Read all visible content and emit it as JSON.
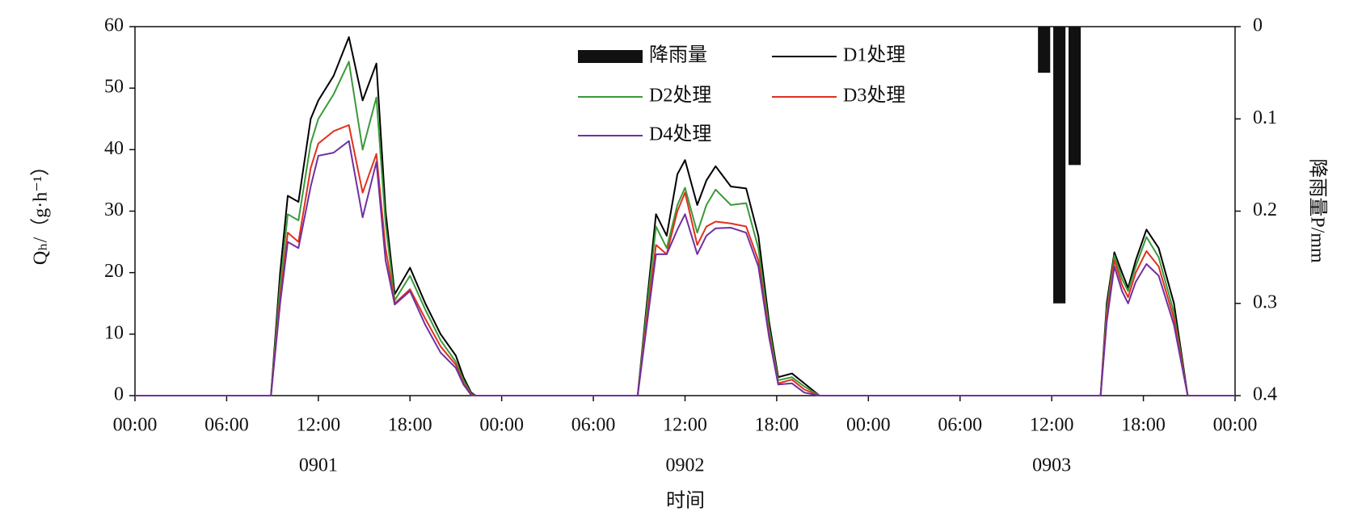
{
  "chart_data": {
    "type": "line",
    "x_label": "时间",
    "y_label": "Qₕ/（g·h⁻¹）",
    "y2_label": "降雨量P/mm",
    "xlim": [
      0,
      72
    ],
    "xticks": [
      {
        "value": 0,
        "label": "00:00"
      },
      {
        "value": 6,
        "label": "06:00"
      },
      {
        "value": 12,
        "label": "12:00"
      },
      {
        "value": 18,
        "label": "18:00"
      },
      {
        "value": 24,
        "label": "00:00"
      },
      {
        "value": 30,
        "label": "06:00"
      },
      {
        "value": 36,
        "label": "12:00"
      },
      {
        "value": 42,
        "label": "18:00"
      },
      {
        "value": 48,
        "label": "00:00"
      },
      {
        "value": 54,
        "label": "06:00"
      },
      {
        "value": 60,
        "label": "12:00"
      },
      {
        "value": 66,
        "label": "18:00"
      },
      {
        "value": 72,
        "label": "00:00"
      }
    ],
    "day_labels": [
      {
        "text": "0901",
        "x": 12
      },
      {
        "text": "0902",
        "x": 36
      },
      {
        "text": "0903",
        "x": 60
      }
    ],
    "ylim": [
      0,
      60
    ],
    "yticks": [
      0,
      10,
      20,
      30,
      40,
      50,
      60
    ],
    "y2lim": [
      0.4,
      0
    ],
    "y2ticks": [
      0,
      0.1,
      0.2,
      0.3,
      0.4
    ],
    "legend": "top-center",
    "x": [
      0,
      8.9,
      9.5,
      10,
      10.7,
      11.5,
      12,
      13,
      14,
      14.9,
      15.8,
      16.4,
      17,
      18,
      19,
      20,
      21,
      21.5,
      22,
      22.3,
      32.9,
      33.5,
      34.1,
      34.8,
      35.5,
      36.0,
      36.8,
      37.4,
      38.0,
      39.0,
      40.0,
      40.8,
      41.5,
      42.1,
      43.0,
      43.8,
      44.8,
      63.2,
      63.6,
      64.1,
      64.6,
      65.0,
      65.5,
      66.2,
      67.0,
      68.0,
      68.9,
      72
    ],
    "series": [
      {
        "name": "降雨量",
        "type": "bar",
        "axis": "y2",
        "color": "#111111",
        "x": [
          59.5,
          60.5,
          61.5
        ],
        "values": [
          0.05,
          0.3,
          0.15
        ]
      },
      {
        "name": "D1处理",
        "color": "#000000",
        "values": [
          0,
          0,
          20,
          32.5,
          31.5,
          45,
          48,
          52,
          58.3,
          48,
          54,
          30,
          16.5,
          20.8,
          15,
          10,
          6.5,
          3,
          0.5,
          0,
          0,
          15,
          29.5,
          26,
          36,
          38.3,
          31,
          35,
          37.3,
          34,
          33.7,
          26,
          12,
          3,
          3.6,
          2,
          0,
          0,
          15,
          23.3,
          20,
          17.5,
          22,
          27,
          24,
          15,
          0,
          0
        ]
      },
      {
        "name": "D2处理",
        "color": "#3a9a3a",
        "values": [
          0,
          0,
          18,
          29.5,
          28.5,
          41,
          45,
          49,
          54.3,
          40,
          48.5,
          28,
          15.5,
          19.5,
          14,
          9,
          5.5,
          2.5,
          0.3,
          0,
          0,
          14,
          27.5,
          24,
          31,
          33.8,
          26.5,
          31,
          33.5,
          31,
          31.3,
          24,
          11,
          2.5,
          3,
          1.5,
          0,
          0,
          14,
          22.8,
          19,
          17,
          21,
          25.8,
          22.5,
          13.5,
          0,
          0
        ]
      },
      {
        "name": "D3处理",
        "color": "#e0301e",
        "values": [
          0,
          0,
          16,
          26.5,
          25,
          37,
          41,
          43,
          44,
          33,
          39.3,
          24,
          15,
          17.3,
          12.5,
          8,
          5,
          2,
          0.2,
          0,
          0,
          12.5,
          24.5,
          23,
          30,
          33,
          24.5,
          27.5,
          28.3,
          28,
          27.5,
          22,
          10,
          2,
          2.6,
          1,
          0,
          0,
          13,
          22,
          18,
          16,
          20,
          23.5,
          21,
          12.5,
          0,
          0
        ]
      },
      {
        "name": "D4处理",
        "color": "#7030a0",
        "values": [
          0,
          0,
          15,
          25,
          24,
          34,
          39,
          39.5,
          41.4,
          29,
          38,
          22,
          14.8,
          17,
          11.5,
          7,
          4.5,
          1.8,
          0.1,
          0,
          0,
          11.5,
          23,
          23,
          27,
          29.5,
          23,
          26,
          27.2,
          27.3,
          26.5,
          21,
          9.5,
          1.8,
          2,
          0.5,
          0,
          0,
          12,
          21,
          17,
          15,
          18.5,
          21.4,
          19.5,
          11.5,
          0,
          0
        ]
      }
    ]
  }
}
